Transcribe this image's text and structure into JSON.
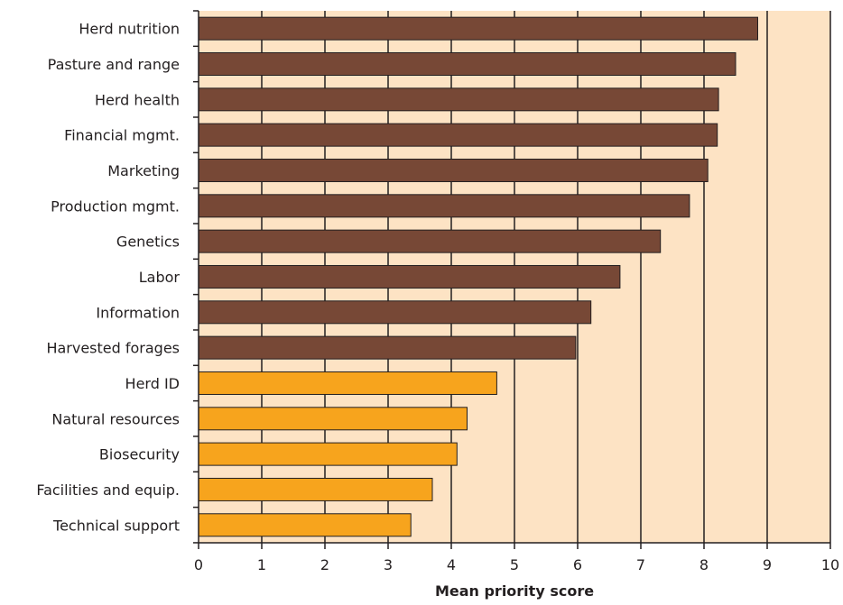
{
  "chart_data": {
    "type": "bar",
    "orientation": "horizontal",
    "title": "",
    "xlabel": "Mean priority score",
    "ylabel": "",
    "xlim": [
      0,
      10
    ],
    "xticks": [
      "0",
      "1",
      "2",
      "3",
      "4",
      "5",
      "6",
      "7",
      "8",
      "9",
      "10"
    ],
    "grid": "vertical gridlines at each integer",
    "categories": [
      "Herd nutrition",
      "Pasture and range",
      "Herd health",
      "Financial mgmt.",
      "Marketing",
      "Production mgmt.",
      "Genetics",
      "Labor",
      "Information",
      "Harvested forages",
      "Herd ID",
      "Natural resources",
      "Biosecurity",
      "Facilities and equip.",
      "Technical support"
    ],
    "values": [
      8.85,
      8.5,
      8.23,
      8.21,
      8.06,
      7.77,
      7.31,
      6.67,
      6.21,
      5.97,
      4.72,
      4.25,
      4.09,
      3.7,
      3.36
    ],
    "bar_groups": [
      "high",
      "high",
      "high",
      "high",
      "high",
      "high",
      "high",
      "high",
      "high",
      "high",
      "low",
      "low",
      "low",
      "low",
      "low"
    ],
    "colors": {
      "high": "#774836",
      "low": "#f7a41d",
      "plot_background": "#fde3c4",
      "axis": "#231f20"
    }
  }
}
